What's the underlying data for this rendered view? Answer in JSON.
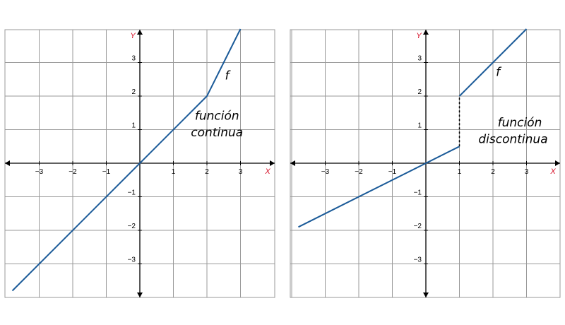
{
  "colors": {
    "line": "#1a5a98",
    "axis_name": "#d6142b",
    "grid": "#9a9a9a",
    "axis": "#000000"
  },
  "icons": {
    "axis_arrow": "arrow-icon"
  },
  "chart_data": [
    {
      "type": "line",
      "xlabel": "X",
      "ylabel": "Y",
      "xlim": [
        -4,
        4
      ],
      "ylim": [
        -4,
        4
      ],
      "grid": true,
      "x_tick_labels": [
        "−3",
        "−2",
        "−1",
        "1",
        "2",
        "3"
      ],
      "y_tick_labels": [
        "3",
        "2",
        "1",
        "−1",
        "−2",
        "−3"
      ],
      "series": [
        {
          "name": "f",
          "segments": [
            {
              "x": [
                -3.8,
                2,
                3
              ],
              "y": [
                -3.8,
                2,
                4
              ]
            }
          ]
        }
      ],
      "annotations": [
        {
          "text": "f",
          "x": 2.6,
          "y": 2.5
        },
        {
          "text": "función",
          "x": 2.3,
          "y": 1.3
        },
        {
          "text": "continua",
          "x": 2.3,
          "y": 0.8
        }
      ]
    },
    {
      "type": "line",
      "xlabel": "X",
      "ylabel": "Y",
      "xlim": [
        -4,
        4
      ],
      "ylim": [
        -4,
        4
      ],
      "grid": true,
      "x_tick_labels": [
        "−3",
        "−2",
        "−1",
        "1",
        "2",
        "3"
      ],
      "y_tick_labels": [
        "3",
        "2",
        "1",
        "−1",
        "−2",
        "−3"
      ],
      "series": [
        {
          "name": "f",
          "segments": [
            {
              "x": [
                -3.8,
                1
              ],
              "y": [
                -1.9,
                0.5
              ]
            },
            {
              "x": [
                1,
                3
              ],
              "y": [
                2,
                4
              ]
            }
          ]
        }
      ],
      "discontinuity": {
        "x": 1,
        "from_y": 0.5,
        "to_y": 2
      },
      "annotations": [
        {
          "text": "f",
          "x": 2.15,
          "y": 2.6
        },
        {
          "text": "función",
          "x": 2.8,
          "y": 1.1
        },
        {
          "text": "discontinua",
          "x": 2.6,
          "y": 0.6
        }
      ]
    }
  ]
}
